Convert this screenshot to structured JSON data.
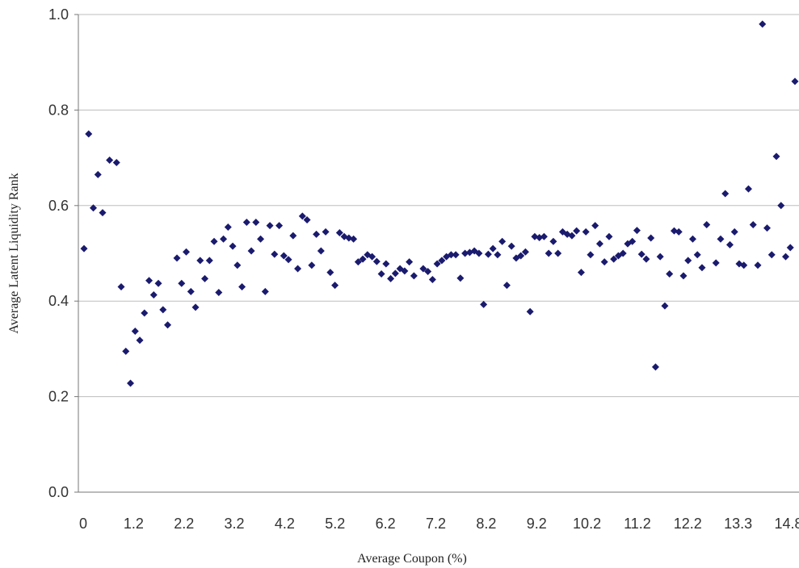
{
  "chart_data": {
    "type": "scatter",
    "xlabel": "Average Coupon (%)",
    "ylabel": "Average Latent Liquidity Rank",
    "ylim": [
      0.0,
      1.0
    ],
    "yticks": [
      "0.0",
      "0.2",
      "0.4",
      "0.6",
      "0.8",
      "1.0"
    ],
    "xtick_labels": [
      "0",
      "1.2",
      "2.2",
      "3.2",
      "4.2",
      "5.2",
      "6.2",
      "7.2",
      "8.2",
      "9.2",
      "10.2",
      "11.2",
      "12.2",
      "13.3",
      "14.8"
    ],
    "grid": "horizontal",
    "marker_color": "#1a1a6e",
    "points": [
      [
        0.0,
        0.51
      ],
      [
        0.1,
        0.75
      ],
      [
        0.2,
        0.595
      ],
      [
        0.3,
        0.665
      ],
      [
        0.4,
        0.585
      ],
      [
        0.55,
        0.695
      ],
      [
        0.7,
        0.69
      ],
      [
        0.8,
        0.43
      ],
      [
        0.9,
        0.295
      ],
      [
        1.0,
        0.228
      ],
      [
        1.1,
        0.337
      ],
      [
        1.2,
        0.318
      ],
      [
        1.3,
        0.375
      ],
      [
        1.4,
        0.443
      ],
      [
        1.5,
        0.413
      ],
      [
        1.6,
        0.437
      ],
      [
        1.7,
        0.382
      ],
      [
        1.8,
        0.35
      ],
      [
        2.0,
        0.49
      ],
      [
        2.1,
        0.437
      ],
      [
        2.2,
        0.503
      ],
      [
        2.3,
        0.42
      ],
      [
        2.4,
        0.387
      ],
      [
        2.5,
        0.485
      ],
      [
        2.6,
        0.447
      ],
      [
        2.7,
        0.485
      ],
      [
        2.8,
        0.525
      ],
      [
        2.9,
        0.418
      ],
      [
        3.0,
        0.53
      ],
      [
        3.1,
        0.555
      ],
      [
        3.2,
        0.515
      ],
      [
        3.3,
        0.475
      ],
      [
        3.4,
        0.43
      ],
      [
        3.5,
        0.565
      ],
      [
        3.6,
        0.505
      ],
      [
        3.7,
        0.565
      ],
      [
        3.8,
        0.53
      ],
      [
        3.9,
        0.42
      ],
      [
        4.0,
        0.558
      ],
      [
        4.1,
        0.498
      ],
      [
        4.2,
        0.558
      ],
      [
        4.3,
        0.495
      ],
      [
        4.4,
        0.487
      ],
      [
        4.5,
        0.537
      ],
      [
        4.6,
        0.468
      ],
      [
        4.7,
        0.578
      ],
      [
        4.8,
        0.57
      ],
      [
        4.9,
        0.475
      ],
      [
        5.0,
        0.54
      ],
      [
        5.1,
        0.505
      ],
      [
        5.2,
        0.545
      ],
      [
        5.3,
        0.46
      ],
      [
        5.4,
        0.433
      ],
      [
        5.5,
        0.543
      ],
      [
        5.6,
        0.535
      ],
      [
        5.7,
        0.532
      ],
      [
        5.8,
        0.53
      ],
      [
        5.9,
        0.482
      ],
      [
        6.0,
        0.488
      ],
      [
        6.1,
        0.497
      ],
      [
        6.2,
        0.493
      ],
      [
        6.3,
        0.483
      ],
      [
        6.4,
        0.457
      ],
      [
        6.5,
        0.478
      ],
      [
        6.6,
        0.447
      ],
      [
        6.7,
        0.458
      ],
      [
        6.8,
        0.468
      ],
      [
        6.9,
        0.463
      ],
      [
        7.0,
        0.482
      ],
      [
        7.1,
        0.453
      ],
      [
        7.3,
        0.468
      ],
      [
        7.4,
        0.462
      ],
      [
        7.5,
        0.445
      ],
      [
        7.6,
        0.478
      ],
      [
        7.7,
        0.485
      ],
      [
        7.8,
        0.493
      ],
      [
        7.9,
        0.497
      ],
      [
        8.0,
        0.497
      ],
      [
        8.1,
        0.448
      ],
      [
        8.2,
        0.5
      ],
      [
        8.3,
        0.502
      ],
      [
        8.4,
        0.505
      ],
      [
        8.5,
        0.5
      ],
      [
        8.6,
        0.393
      ],
      [
        8.7,
        0.498
      ],
      [
        8.8,
        0.51
      ],
      [
        8.9,
        0.497
      ],
      [
        9.0,
        0.525
      ],
      [
        9.1,
        0.433
      ],
      [
        9.2,
        0.515
      ],
      [
        9.3,
        0.49
      ],
      [
        9.4,
        0.495
      ],
      [
        9.5,
        0.503
      ],
      [
        9.6,
        0.378
      ],
      [
        9.7,
        0.535
      ],
      [
        9.8,
        0.533
      ],
      [
        9.9,
        0.535
      ],
      [
        10.0,
        0.5
      ],
      [
        10.1,
        0.525
      ],
      [
        10.2,
        0.5
      ],
      [
        10.3,
        0.545
      ],
      [
        10.4,
        0.54
      ],
      [
        10.5,
        0.537
      ],
      [
        10.6,
        0.547
      ],
      [
        10.7,
        0.46
      ],
      [
        10.8,
        0.545
      ],
      [
        10.9,
        0.497
      ],
      [
        11.0,
        0.558
      ],
      [
        11.1,
        0.52
      ],
      [
        11.2,
        0.482
      ],
      [
        11.3,
        0.535
      ],
      [
        11.4,
        0.488
      ],
      [
        11.5,
        0.495
      ],
      [
        11.6,
        0.5
      ],
      [
        11.7,
        0.52
      ],
      [
        11.8,
        0.525
      ],
      [
        11.9,
        0.548
      ],
      [
        12.0,
        0.498
      ],
      [
        12.1,
        0.488
      ],
      [
        12.2,
        0.532
      ],
      [
        12.3,
        0.262
      ],
      [
        12.4,
        0.493
      ],
      [
        12.5,
        0.39
      ],
      [
        12.6,
        0.457
      ],
      [
        12.7,
        0.547
      ],
      [
        12.8,
        0.545
      ],
      [
        12.9,
        0.453
      ],
      [
        13.0,
        0.485
      ],
      [
        13.1,
        0.53
      ],
      [
        13.2,
        0.497
      ],
      [
        13.3,
        0.47
      ],
      [
        13.4,
        0.56
      ],
      [
        13.6,
        0.48
      ],
      [
        13.7,
        0.53
      ],
      [
        13.8,
        0.625
      ],
      [
        13.9,
        0.518
      ],
      [
        14.0,
        0.545
      ],
      [
        14.1,
        0.478
      ],
      [
        14.2,
        0.475
      ],
      [
        14.3,
        0.635
      ],
      [
        14.4,
        0.56
      ],
      [
        14.5,
        0.475
      ],
      [
        14.6,
        0.98
      ],
      [
        14.7,
        0.553
      ],
      [
        14.8,
        0.497
      ],
      [
        14.9,
        0.703
      ],
      [
        15.0,
        0.6
      ],
      [
        15.1,
        0.493
      ],
      [
        15.2,
        0.512
      ],
      [
        15.3,
        0.86
      ]
    ]
  }
}
